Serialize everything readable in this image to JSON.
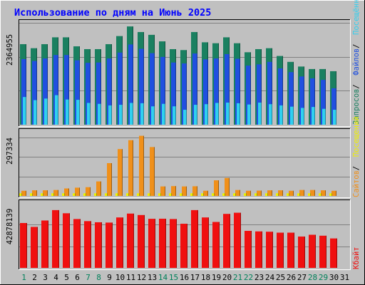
{
  "chart_data": {
    "type": "bar",
    "title": "Использование по дням на Июнь 2025",
    "categories": [
      "1",
      "2",
      "3",
      "4",
      "5",
      "6",
      "7",
      "8",
      "9",
      "10",
      "11",
      "12",
      "13",
      "14",
      "15",
      "16",
      "17",
      "18",
      "19",
      "20",
      "21",
      "22",
      "23",
      "24",
      "25",
      "26",
      "27",
      "28",
      "29",
      "30",
      "31"
    ],
    "weekend_days": [
      "1",
      "7",
      "8",
      "14",
      "15",
      "21",
      "22",
      "28",
      "29"
    ],
    "panels": [
      {
        "name": "top",
        "y_tick_label": "2364955",
        "ylim": [
          0,
          3300000
        ],
        "legend": [
          "Запросов",
          "Файлов",
          "Посещённых страниц"
        ],
        "series": [
          {
            "name": "Запросов",
            "color": "#1a8060",
            "values": [
              2590000,
              2460000,
              2590000,
              2810000,
              2810000,
              2520000,
              2430000,
              2430000,
              2590000,
              2850000,
              3160000,
              2980000,
              2890000,
              2680000,
              2430000,
              2400000,
              2980000,
              2650000,
              2620000,
              2810000,
              2620000,
              2330000,
              2430000,
              2460000,
              2210000,
              2020000,
              1870000,
              1790000,
              1790000,
              1720000
            ]
          },
          {
            "name": "Файлов",
            "color": "#2050e0",
            "values": [
              2110000,
              2050000,
              2130000,
              2240000,
              2240000,
              2070000,
              1990000,
              2000000,
              2130000,
              2320000,
              2580000,
              2440000,
              2300000,
              2180000,
              2000000,
              1970000,
              2290000,
              2100000,
              2130000,
              2270000,
              2120000,
              1900000,
              1940000,
              2020000,
              1810000,
              1690000,
              1550000,
              1490000,
              1440000,
              1170000
            ]
          },
          {
            "name": "Посещённых страниц",
            "color": "#30d0f0",
            "values": [
              890000,
              790000,
              840000,
              950000,
              810000,
              800000,
              700000,
              670000,
              620000,
              640000,
              700000,
              690000,
              590000,
              670000,
              590000,
              480000,
              640000,
              660000,
              700000,
              710000,
              690000,
              650000,
              710000,
              660000,
              620000,
              580000,
              540000,
              570000,
              510000,
              480000
            ]
          }
        ]
      },
      {
        "name": "middle",
        "y_tick_label": "297334",
        "ylim": [
          0,
          415000
        ],
        "legend": [
          "Сайтов",
          "Посещений"
        ],
        "series": [
          {
            "name": "Сайтов",
            "color": "#f0901a",
            "values": [
              33000,
              36000,
              36000,
              38000,
              48000,
              53000,
              56000,
              93000,
              210000,
              300000,
              357000,
              385000,
              313000,
              61000,
              63000,
              61000,
              62000,
              33000,
              100000,
              115000,
              38000,
              33000,
              34000,
              36000,
              36000,
              33000,
              38000,
              38000,
              36000,
              33000
            ]
          },
          {
            "name": "Посещений",
            "color": "#f0f000",
            "values": [
              17000,
              17000,
              17000,
              17000,
              17000,
              17000,
              17000,
              17000,
              17000,
              17000,
              17000,
              17000,
              17000,
              17000,
              17000,
              17000,
              17000,
              17000,
              17000,
              17000,
              17000,
              17000,
              17000,
              17000,
              17000,
              17000,
              17000,
              17000,
              17000,
              17000
            ]
          }
        ]
      },
      {
        "name": "bottom",
        "y_tick_label": "42878139",
        "ylim": [
          0,
          62500000
        ],
        "legend": [
          "Кбайт"
        ],
        "series": [
          {
            "name": "Кбайт",
            "color": "#f01010",
            "values": [
              42800000,
              39100000,
              45200000,
              55100000,
              52100000,
              46600000,
              44600000,
              43500000,
              43200000,
              48100000,
              51800000,
              50400000,
              46800000,
              46900000,
              46600000,
              42100000,
              55100000,
              48100000,
              43800000,
              51500000,
              52600000,
              35300000,
              34800000,
              34500000,
              33600000,
              33600000,
              29900000,
              31600000,
              30700000,
              28100000
            ]
          }
        ]
      }
    ]
  }
}
